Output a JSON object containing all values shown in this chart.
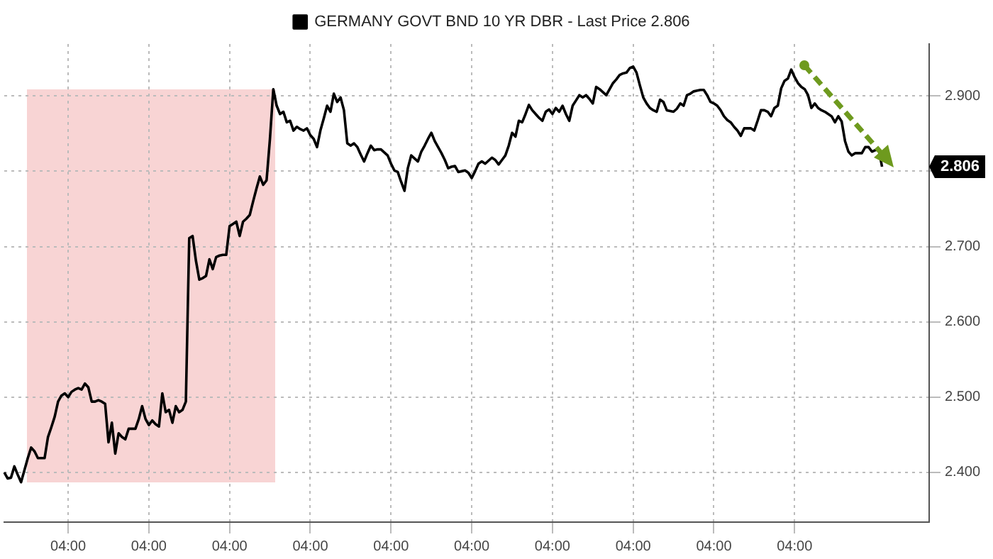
{
  "chart_data": {
    "type": "line",
    "categories": [
      null,
      null,
      null,
      null,
      null,
      null,
      null,
      null,
      null,
      null,
      null,
      null,
      null,
      null,
      null,
      null,
      null,
      null,
      null,
      "04:00",
      null,
      null,
      null,
      null,
      null,
      null,
      null,
      null,
      null,
      null,
      null,
      null,
      null,
      null,
      null,
      null,
      null,
      null,
      null,
      null,
      null,
      null,
      null,
      "04:00",
      null,
      null,
      null,
      null,
      null,
      null,
      null,
      null,
      null,
      null,
      null,
      null,
      null,
      null,
      null,
      null,
      null,
      null,
      null,
      null,
      null,
      null,
      null,
      "04:00",
      null,
      null,
      null,
      null,
      null,
      null,
      null,
      null,
      null,
      null,
      null,
      null,
      null,
      null,
      null,
      null,
      null,
      null,
      null,
      null,
      null,
      null,
      null,
      "04:00",
      null,
      null,
      null,
      null,
      null,
      null,
      null,
      null,
      null,
      null,
      null,
      null,
      null,
      null,
      null,
      null,
      null,
      null,
      null,
      null,
      null,
      null,
      null,
      "04:00",
      null,
      null,
      null,
      null,
      null,
      null,
      null,
      null,
      null,
      null,
      null,
      null,
      null,
      null,
      null,
      null,
      null,
      null,
      null,
      null,
      null,
      null,
      null,
      "04:00",
      null,
      null,
      null,
      null,
      null,
      null,
      null,
      null,
      null,
      null,
      null,
      null,
      null,
      null,
      null,
      null,
      null,
      null,
      null,
      null,
      null,
      null,
      null,
      "04:00",
      null,
      null,
      null,
      null,
      null,
      null,
      null,
      null,
      null,
      null,
      null,
      null,
      null,
      null,
      null,
      null,
      null,
      null,
      null,
      null,
      null,
      null,
      null,
      "04:00",
      null,
      null,
      null,
      null,
      null,
      null,
      null,
      null,
      null,
      null,
      null,
      null,
      null,
      null,
      null,
      null,
      null,
      null,
      null,
      null,
      null,
      null,
      null,
      "04:00",
      null,
      null,
      null,
      null,
      null,
      null,
      null,
      null,
      null,
      null,
      null,
      null,
      null,
      null,
      null,
      null,
      null,
      null,
      null,
      null,
      null,
      null,
      null,
      "04:00",
      null,
      null,
      null,
      null,
      null,
      null,
      null,
      null,
      null,
      null,
      null,
      null,
      null,
      null,
      null,
      null,
      null,
      null,
      null,
      null,
      null,
      null,
      null,
      null,
      null,
      null,
      null,
      null,
      null,
      null,
      null,
      null,
      null,
      null,
      null,
      null,
      null,
      null,
      null,
      null
    ],
    "series": [
      {
        "name": "GERMANY GOVT BND 10 YR DBR - Last Price 2.806",
        "color": "#000000",
        "values": [
          2.4,
          2.392,
          2.393,
          2.408,
          2.397,
          2.387,
          2.403,
          2.419,
          2.433,
          2.428,
          2.419,
          2.419,
          2.419,
          2.447,
          2.46,
          2.474,
          2.494,
          2.502,
          2.505,
          2.5,
          2.507,
          2.51,
          2.512,
          2.51,
          2.518,
          2.513,
          2.494,
          2.494,
          2.496,
          2.494,
          2.491,
          2.44,
          2.466,
          2.425,
          2.452,
          2.447,
          2.444,
          2.458,
          2.458,
          2.458,
          2.471,
          2.488,
          2.471,
          2.463,
          2.469,
          2.464,
          2.461,
          2.505,
          2.48,
          2.483,
          2.466,
          2.488,
          2.48,
          2.483,
          2.494,
          2.711,
          2.714,
          2.681,
          2.656,
          2.658,
          2.661,
          2.683,
          2.67,
          2.686,
          2.688,
          2.689,
          2.689,
          2.727,
          2.73,
          2.733,
          2.714,
          2.733,
          2.737,
          2.742,
          2.76,
          2.777,
          2.793,
          2.782,
          2.788,
          2.843,
          2.909,
          2.887,
          2.876,
          2.879,
          2.865,
          2.867,
          2.854,
          2.859,
          2.856,
          2.854,
          2.857,
          2.848,
          2.843,
          2.832,
          2.854,
          2.87,
          2.887,
          2.879,
          2.903,
          2.892,
          2.898,
          2.881,
          2.837,
          2.834,
          2.837,
          2.832,
          2.822,
          2.813,
          2.824,
          2.834,
          2.828,
          2.829,
          2.829,
          2.825,
          2.821,
          2.81,
          2.801,
          2.799,
          2.786,
          2.774,
          2.804,
          2.821,
          2.817,
          2.813,
          2.826,
          2.834,
          2.843,
          2.851,
          2.84,
          2.832,
          2.824,
          2.815,
          2.804,
          2.806,
          2.807,
          2.799,
          2.8,
          2.801,
          2.798,
          2.791,
          2.8,
          2.81,
          2.813,
          2.81,
          2.814,
          2.818,
          2.815,
          2.809,
          2.815,
          2.821,
          2.834,
          2.851,
          2.846,
          2.867,
          2.865,
          2.876,
          2.888,
          2.881,
          2.876,
          2.871,
          2.867,
          2.879,
          2.882,
          2.876,
          2.884,
          2.879,
          2.887,
          2.876,
          2.867,
          2.887,
          2.894,
          2.901,
          2.898,
          2.901,
          2.896,
          2.89,
          2.912,
          2.909,
          2.905,
          2.901,
          2.909,
          2.917,
          2.922,
          2.928,
          2.93,
          2.931,
          2.937,
          2.939,
          2.931,
          2.914,
          2.898,
          2.89,
          2.884,
          2.881,
          2.879,
          2.895,
          2.892,
          2.881,
          2.88,
          2.879,
          2.883,
          2.89,
          2.887,
          2.901,
          2.903,
          2.906,
          2.907,
          2.908,
          2.908,
          2.901,
          2.892,
          2.89,
          2.887,
          2.881,
          2.873,
          2.868,
          2.865,
          2.859,
          2.854,
          2.847,
          2.857,
          2.857,
          2.857,
          2.854,
          2.867,
          2.881,
          2.881,
          2.879,
          2.873,
          2.884,
          2.887,
          2.91,
          2.92,
          2.923,
          2.935,
          2.925,
          2.917,
          2.912,
          2.909,
          2.901,
          2.884,
          2.89,
          2.884,
          2.881,
          2.879,
          2.876,
          2.873,
          2.865,
          2.873,
          2.866,
          2.84,
          2.826,
          2.821,
          2.824,
          2.824,
          2.824,
          2.832,
          2.832,
          2.826,
          2.828,
          2.829,
          2.806,
          null,
          null,
          null,
          null,
          null,
          null,
          null,
          null,
          null,
          null,
          null,
          null,
          null,
          null
        ]
      }
    ],
    "ylim": [
      2.334,
      2.969
    ],
    "yticks": [
      {
        "value": 2.4,
        "label": "2.400"
      },
      {
        "value": 2.5,
        "label": "2.500"
      },
      {
        "value": 2.6,
        "label": "2.600"
      },
      {
        "value": 2.7,
        "label": "2.700"
      },
      {
        "value": 2.8,
        "label": null
      },
      {
        "value": 2.9,
        "label": "2.900"
      }
    ],
    "annotations": [
      {
        "text": "2.806",
        "y": 2.806
      }
    ],
    "grid": true,
    "legend": "top",
    "marker": "none"
  }
}
